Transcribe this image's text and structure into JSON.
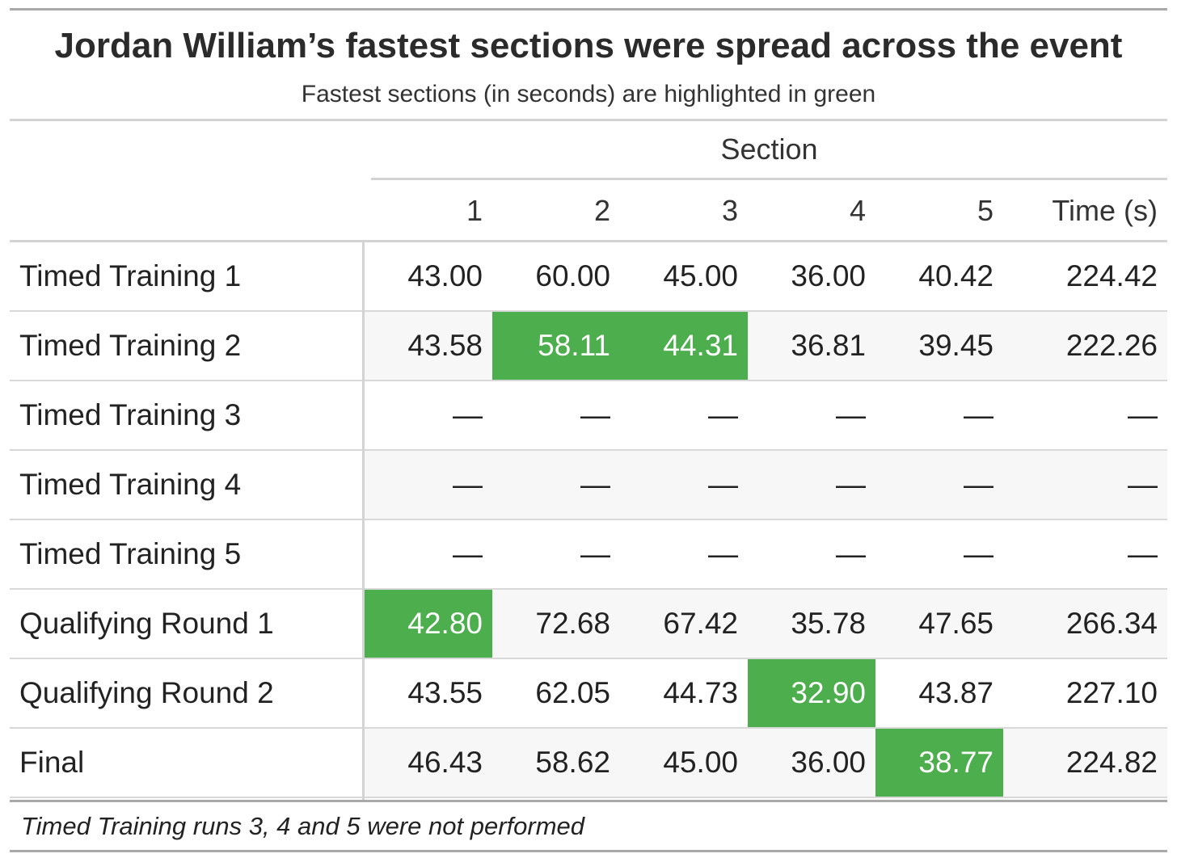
{
  "chart_data": {
    "type": "table",
    "title": "Jordan William’s fastest sections were spread across the event",
    "subtitle": "Fastest sections (in seconds) are highlighted in green",
    "spanner": "Section",
    "columns": [
      "1",
      "2",
      "3",
      "4",
      "5",
      "Time (s)"
    ],
    "rows": [
      {
        "label": "Timed Training 1",
        "values": [
          "43.00",
          "60.00",
          "45.00",
          "36.00",
          "40.42",
          "224.42"
        ],
        "highlight": []
      },
      {
        "label": "Timed Training 2",
        "values": [
          "43.58",
          "58.11",
          "44.31",
          "36.81",
          "39.45",
          "222.26"
        ],
        "highlight": [
          1,
          2
        ]
      },
      {
        "label": "Timed Training 3",
        "values": [
          "—",
          "—",
          "—",
          "—",
          "—",
          "—"
        ],
        "highlight": []
      },
      {
        "label": "Timed Training 4",
        "values": [
          "—",
          "—",
          "—",
          "—",
          "—",
          "—"
        ],
        "highlight": []
      },
      {
        "label": "Timed Training 5",
        "values": [
          "—",
          "—",
          "—",
          "—",
          "—",
          "—"
        ],
        "highlight": []
      },
      {
        "label": "Qualifying Round 1",
        "values": [
          "42.80",
          "72.68",
          "67.42",
          "35.78",
          "47.65",
          "266.34"
        ],
        "highlight": [
          0
        ]
      },
      {
        "label": "Qualifying Round 2",
        "values": [
          "43.55",
          "62.05",
          "44.73",
          "32.90",
          "43.87",
          "227.10"
        ],
        "highlight": [
          3
        ]
      },
      {
        "label": "Final",
        "values": [
          "46.43",
          "58.62",
          "45.00",
          "36.00",
          "38.77",
          "224.82"
        ],
        "highlight": [
          4
        ]
      }
    ],
    "footnote": "Timed Training runs 3, 4 and 5 were not performed",
    "highlight_color": "#4cae4c",
    "stripe_color": "#f7f7f7"
  }
}
